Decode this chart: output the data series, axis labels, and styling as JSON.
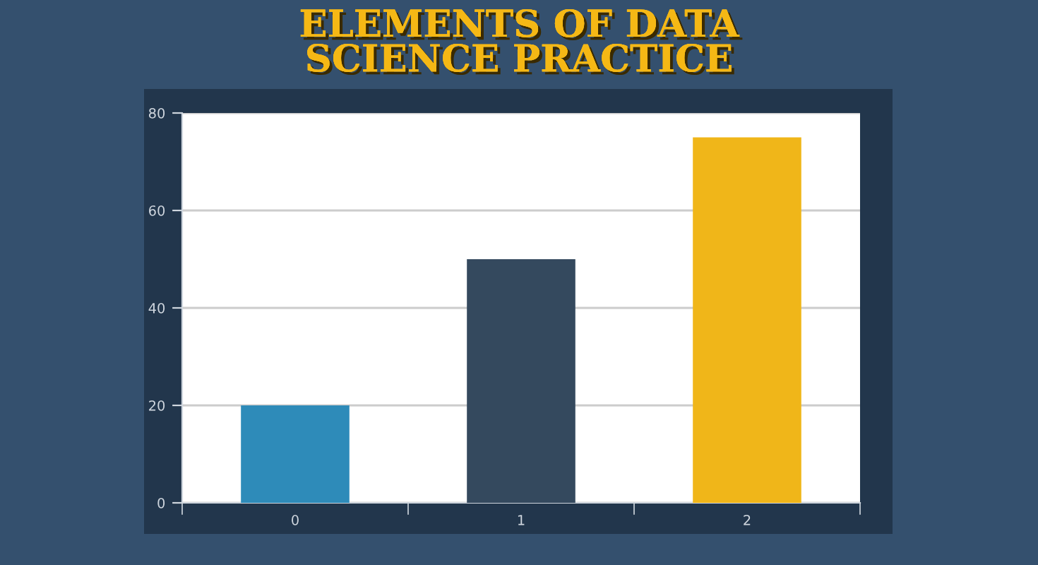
{
  "chart_data": {
    "type": "bar",
    "title": "ELEMENTS OF DATA\nSCIENCE PRACTICE",
    "categories": [
      "0",
      "1",
      "2"
    ],
    "values": [
      20,
      50,
      75
    ],
    "colors": [
      "#2e8bb9",
      "#34495e",
      "#f0b619"
    ],
    "ylim": [
      0,
      80
    ],
    "yticks": [
      0,
      20,
      40,
      60,
      80
    ],
    "grid": "y"
  }
}
